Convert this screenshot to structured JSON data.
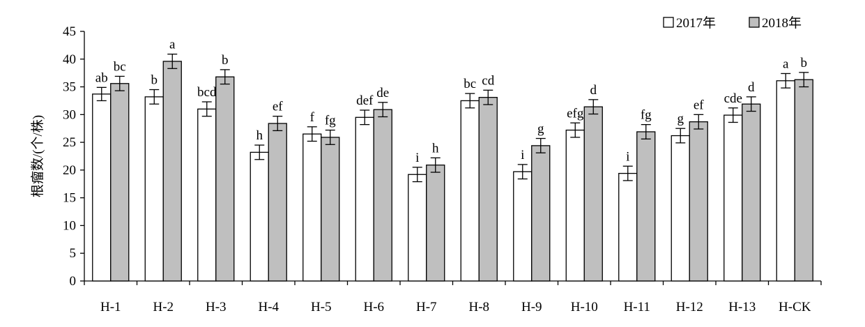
{
  "chart_data": {
    "type": "bar",
    "title": "",
    "xlabel": "",
    "ylabel": "根瘤数/(个/株)",
    "ylim": [
      0,
      45
    ],
    "yticks": [
      0,
      5,
      10,
      15,
      20,
      25,
      30,
      35,
      40,
      45
    ],
    "grid": false,
    "legend_position": "top-right",
    "categories": [
      "H-1",
      "H-2",
      "H-3",
      "H-4",
      "H-5",
      "H-6",
      "H-7",
      "H-8",
      "H-9",
      "H-10",
      "H-11",
      "H-12",
      "H-13",
      "H-CK"
    ],
    "series": [
      {
        "name": "2017年",
        "color": "#ffffff",
        "values": [
          33.7,
          33.2,
          31.0,
          23.2,
          26.5,
          29.5,
          19.2,
          32.5,
          19.7,
          27.2,
          19.4,
          26.2,
          29.9,
          36.1
        ],
        "errors": [
          1.2,
          1.3,
          1.3,
          1.3,
          1.3,
          1.3,
          1.3,
          1.3,
          1.3,
          1.3,
          1.3,
          1.3,
          1.3,
          1.3
        ],
        "labels": [
          "ab",
          "b",
          "bcd",
          "h",
          "f",
          "def",
          "i",
          "bc",
          "i",
          "efg",
          "i",
          "g",
          "cde",
          "a"
        ]
      },
      {
        "name": "2018年",
        "color": "#bfbfbf",
        "values": [
          35.6,
          39.6,
          36.8,
          28.4,
          25.9,
          30.9,
          20.9,
          33.1,
          24.4,
          31.4,
          26.9,
          28.7,
          31.9,
          36.3
        ],
        "errors": [
          1.3,
          1.3,
          1.3,
          1.3,
          1.3,
          1.3,
          1.3,
          1.3,
          1.3,
          1.3,
          1.3,
          1.3,
          1.3,
          1.3
        ],
        "labels": [
          "bc",
          "a",
          "b",
          "ef",
          "fg",
          "de",
          "h",
          "cd",
          "g",
          "d",
          "fg",
          "ef",
          "d",
          "b"
        ]
      }
    ]
  }
}
